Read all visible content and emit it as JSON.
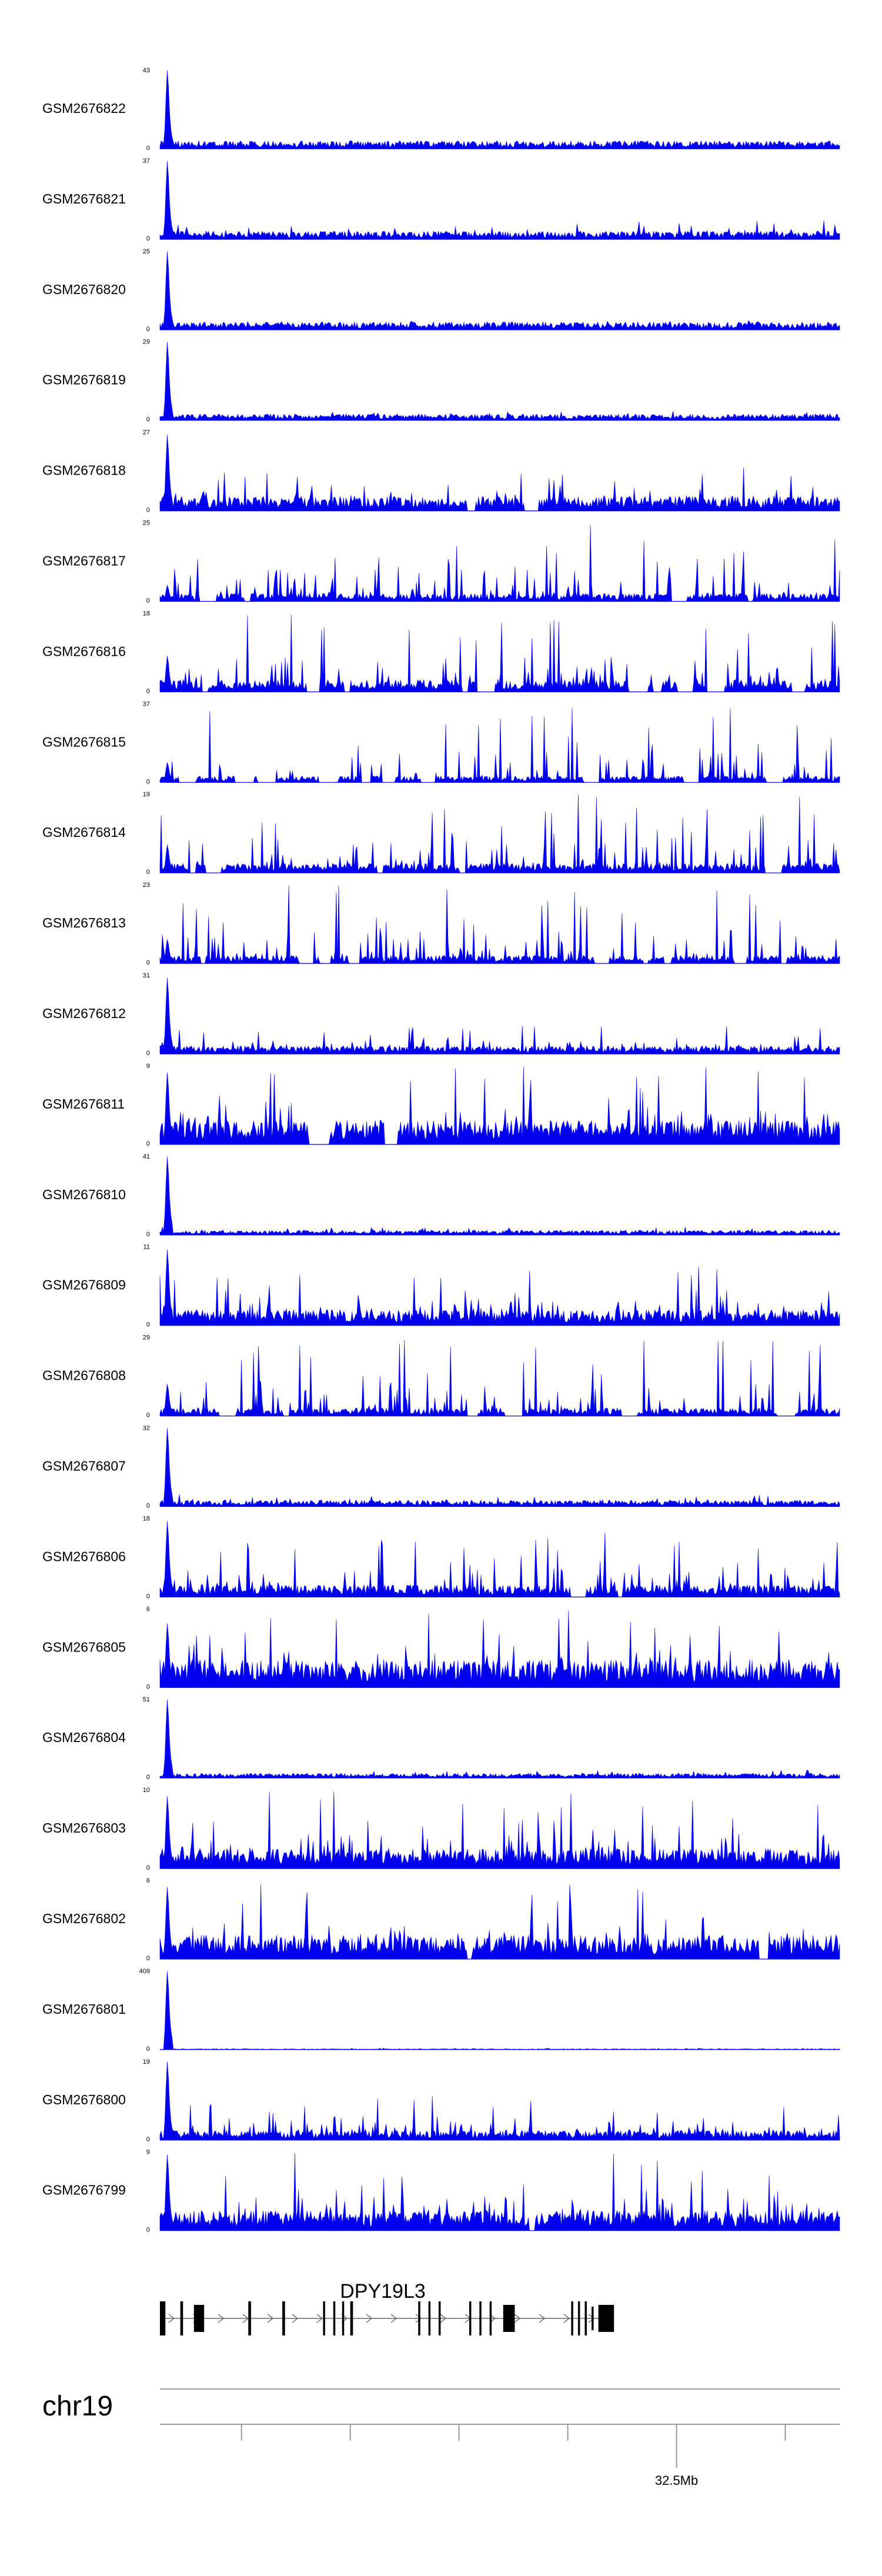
{
  "chart_data": {
    "type": "area",
    "tracks": [
      {
        "name": "GSM2676822",
        "ymax": "43",
        "ymin": "0",
        "peak": 0.98,
        "base": 0.1,
        "spikes": 0.1,
        "gaps": 0.0
      },
      {
        "name": "GSM2676821",
        "ymax": "37",
        "ymin": "0",
        "peak": 0.98,
        "base": 0.1,
        "spikes": 0.25,
        "gaps": 0.0
      },
      {
        "name": "GSM2676820",
        "ymax": "25",
        "ymin": "0",
        "peak": 0.98,
        "base": 0.1,
        "spikes": 0.12,
        "gaps": 0.0
      },
      {
        "name": "GSM2676819",
        "ymax": "29",
        "ymin": "0",
        "peak": 0.98,
        "base": 0.08,
        "spikes": 0.12,
        "gaps": 0.0
      },
      {
        "name": "GSM2676818",
        "ymax": "27",
        "ymin": "0",
        "peak": 0.95,
        "base": 0.18,
        "spikes": 0.55,
        "gaps": 0.05
      },
      {
        "name": "GSM2676817",
        "ymax": "25",
        "ymin": "0",
        "peak": 0.2,
        "base": 0.1,
        "spikes": 0.98,
        "gaps": 0.35
      },
      {
        "name": "GSM2676816",
        "ymax": "18",
        "ymin": "0",
        "peak": 0.45,
        "base": 0.15,
        "spikes": 0.98,
        "gaps": 0.3
      },
      {
        "name": "GSM2676815",
        "ymax": "37",
        "ymin": "0",
        "peak": 0.25,
        "base": 0.08,
        "spikes": 0.95,
        "gaps": 0.4
      },
      {
        "name": "GSM2676814",
        "ymax": "19",
        "ymin": "0",
        "peak": 0.35,
        "base": 0.12,
        "spikes": 0.98,
        "gaps": 0.25
      },
      {
        "name": "GSM2676813",
        "ymax": "23",
        "ymin": "0",
        "peak": 0.3,
        "base": 0.1,
        "spikes": 0.98,
        "gaps": 0.4
      },
      {
        "name": "GSM2676812",
        "ymax": "31",
        "ymin": "0",
        "peak": 0.95,
        "base": 0.1,
        "spikes": 0.35,
        "gaps": 0.0
      },
      {
        "name": "GSM2676811",
        "ymax": "9",
        "ymin": "0",
        "peak": 0.9,
        "base": 0.3,
        "spikes": 0.98,
        "gaps": 0.05
      },
      {
        "name": "GSM2676810",
        "ymax": "41",
        "ymin": "0",
        "peak": 0.98,
        "base": 0.06,
        "spikes": 0.1,
        "gaps": 0.0
      },
      {
        "name": "GSM2676809",
        "ymax": "11",
        "ymin": "0",
        "peak": 0.95,
        "base": 0.2,
        "spikes": 0.75,
        "gaps": 0.05
      },
      {
        "name": "GSM2676808",
        "ymax": "29",
        "ymin": "0",
        "peak": 0.4,
        "base": 0.1,
        "spikes": 0.98,
        "gaps": 0.3
      },
      {
        "name": "GSM2676807",
        "ymax": "32",
        "ymin": "0",
        "peak": 0.98,
        "base": 0.08,
        "spikes": 0.15,
        "gaps": 0.0
      },
      {
        "name": "GSM2676806",
        "ymax": "18",
        "ymin": "0",
        "peak": 0.95,
        "base": 0.15,
        "spikes": 0.85,
        "gaps": 0.05
      },
      {
        "name": "GSM2676805",
        "ymax": "6",
        "ymin": "0",
        "peak": 0.8,
        "base": 0.35,
        "spikes": 0.98,
        "gaps": 0.0
      },
      {
        "name": "GSM2676804",
        "ymax": "51",
        "ymin": "0",
        "peak": 0.98,
        "base": 0.06,
        "spikes": 0.1,
        "gaps": 0.0
      },
      {
        "name": "GSM2676803",
        "ymax": "10",
        "ymin": "0",
        "peak": 0.9,
        "base": 0.25,
        "spikes": 0.98,
        "gaps": 0.05
      },
      {
        "name": "GSM2676802",
        "ymax": "6",
        "ymin": "0",
        "peak": 0.9,
        "base": 0.3,
        "spikes": 0.98,
        "gaps": 0.05
      },
      {
        "name": "GSM2676801",
        "ymax": "409",
        "ymin": "0",
        "peak": 0.98,
        "base": 0.01,
        "spikes": 0.02,
        "gaps": 0.0
      },
      {
        "name": "GSM2676800",
        "ymax": "19",
        "ymin": "0",
        "peak": 0.98,
        "base": 0.12,
        "spikes": 0.55,
        "gaps": 0.05
      },
      {
        "name": "GSM2676799",
        "ymax": "9",
        "ymin": "0",
        "peak": 0.95,
        "base": 0.25,
        "spikes": 0.98,
        "gaps": 0.05
      }
    ],
    "gene": {
      "name": "DPY19L3",
      "strand": "+",
      "exons": [
        {
          "start": 0.0,
          "end": 0.008,
          "full": true
        },
        {
          "start": 0.03,
          "end": 0.034,
          "full": true
        },
        {
          "start": 0.05,
          "end": 0.065,
          "full": true
        },
        {
          "start": 0.13,
          "end": 0.134,
          "full": true
        },
        {
          "start": 0.18,
          "end": 0.184,
          "full": true
        },
        {
          "start": 0.24,
          "end": 0.243,
          "full": true
        },
        {
          "start": 0.255,
          "end": 0.258,
          "full": true
        },
        {
          "start": 0.268,
          "end": 0.271,
          "full": true
        },
        {
          "start": 0.28,
          "end": 0.284,
          "full": true
        },
        {
          "start": 0.38,
          "end": 0.383,
          "full": true
        },
        {
          "start": 0.395,
          "end": 0.398,
          "full": true
        },
        {
          "start": 0.41,
          "end": 0.413,
          "full": true
        },
        {
          "start": 0.455,
          "end": 0.458,
          "full": true
        },
        {
          "start": 0.47,
          "end": 0.473,
          "full": true
        },
        {
          "start": 0.485,
          "end": 0.488,
          "full": true
        },
        {
          "start": 0.505,
          "end": 0.522,
          "full": true
        },
        {
          "start": 0.605,
          "end": 0.608,
          "full": true
        },
        {
          "start": 0.615,
          "end": 0.618,
          "full": true
        },
        {
          "start": 0.625,
          "end": 0.628,
          "full": true
        },
        {
          "start": 0.635,
          "end": 0.638,
          "full": false
        },
        {
          "start": 0.645,
          "end": 0.668,
          "full": true
        }
      ],
      "extent": [
        0.0,
        0.6666
      ]
    },
    "chromosome": "chr19",
    "axis": {
      "tick_label": "32.5Mb",
      "minor_ticks": [
        0.12,
        0.28,
        0.44,
        0.6,
        0.92
      ],
      "major_tick": 0.76
    },
    "colors": {
      "signal": "#0000ee",
      "gene": "#000000",
      "axis": "#999999",
      "label": "#000000"
    }
  }
}
